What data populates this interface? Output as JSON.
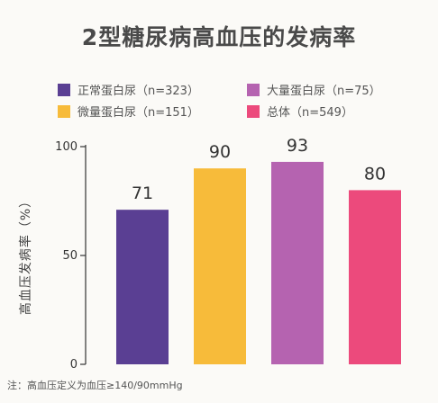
{
  "title": "2型糖尿病高血压的发病率",
  "note": "注：高血压定义为血压≥140/90mmHg",
  "chart_data": {
    "type": "bar",
    "title": "2型糖尿病高血压的发病率",
    "ylabel": "高血压发病率（%）",
    "xlabel": "",
    "ylim": [
      0,
      100
    ],
    "yticks": [
      0,
      50,
      100
    ],
    "grid": false,
    "legend_position": "top",
    "categories": [
      "正常蛋白尿（n=323）",
      "微量蛋白尿（n=151）",
      "大量蛋白尿（n=75）",
      "总体（n=549）"
    ],
    "values": [
      71,
      90,
      93,
      80
    ],
    "colors": [
      "#5a3f93",
      "#f7bb3a",
      "#b563b0",
      "#ec4a7c"
    ]
  },
  "legend": [
    {
      "label": "正常蛋白尿（n=323）",
      "color": "#5a3f93"
    },
    {
      "label": "大量蛋白尿（n=75）",
      "color": "#b563b0"
    },
    {
      "label": "微量蛋白尿（n=151）",
      "color": "#f7bb3a"
    },
    {
      "label": "总体（n=549）",
      "color": "#ec4a7c"
    }
  ]
}
